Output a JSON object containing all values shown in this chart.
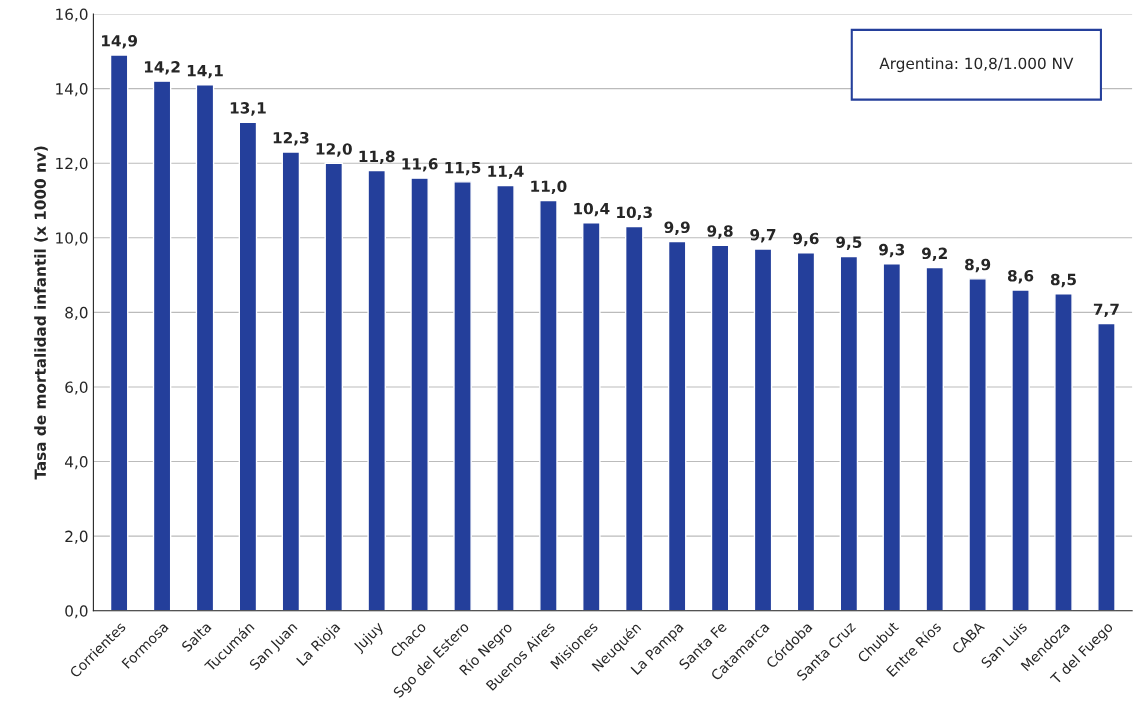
{
  "chart_data": {
    "type": "bar",
    "ylabel": "Tasa de mortalidad infantil (x 1000 nv)",
    "categories": [
      "Corrientes",
      "Formosa",
      "Salta",
      "Tucumán",
      "San Juan",
      "La Rioja",
      "Jujuy",
      "Chaco",
      "Sgo del Estero",
      "Río Negro",
      "Buenos Aires",
      "Misiones",
      "Neuquén",
      "La Pampa",
      "Santa Fe",
      "Catamarca",
      "Córdoba",
      "Santa Cruz",
      "Chubut",
      "Entre Ríos",
      "CABA",
      "San Luis",
      "Mendoza",
      "T del Fuego"
    ],
    "values": [
      14.9,
      14.2,
      14.1,
      13.1,
      12.3,
      12.0,
      11.8,
      11.6,
      11.5,
      11.4,
      11.0,
      10.4,
      10.3,
      9.9,
      9.8,
      9.7,
      9.6,
      9.5,
      9.3,
      9.2,
      8.9,
      8.6,
      8.5,
      7.7
    ],
    "value_labels": [
      "14,9",
      "14,2",
      "14,1",
      "13,1",
      "12,3",
      "12,0",
      "11,8",
      "11,6",
      "11,5",
      "11,4",
      "11,0",
      "10,4",
      "10,3",
      "9,9",
      "9,8",
      "9,7",
      "9,6",
      "9,5",
      "9,3",
      "9,2",
      "8,9",
      "8,6",
      "8,5",
      "7,7"
    ],
    "color": "#243f9b",
    "ylim": [
      0,
      16
    ],
    "yticks": [
      {
        "value": 0,
        "label": "0,0"
      },
      {
        "value": 2,
        "label": "2,0"
      },
      {
        "value": 4,
        "label": "4,0"
      },
      {
        "value": 6,
        "label": "6,0"
      },
      {
        "value": 8,
        "label": "8,0"
      },
      {
        "value": 10,
        "label": "10,0"
      },
      {
        "value": 12,
        "label": "12,0"
      },
      {
        "value": 14,
        "label": "14,0"
      },
      {
        "value": 16,
        "label": "16,0"
      }
    ],
    "grid": "y",
    "annotations": [
      "Argentina: 10,8/1.000 NV"
    ]
  }
}
